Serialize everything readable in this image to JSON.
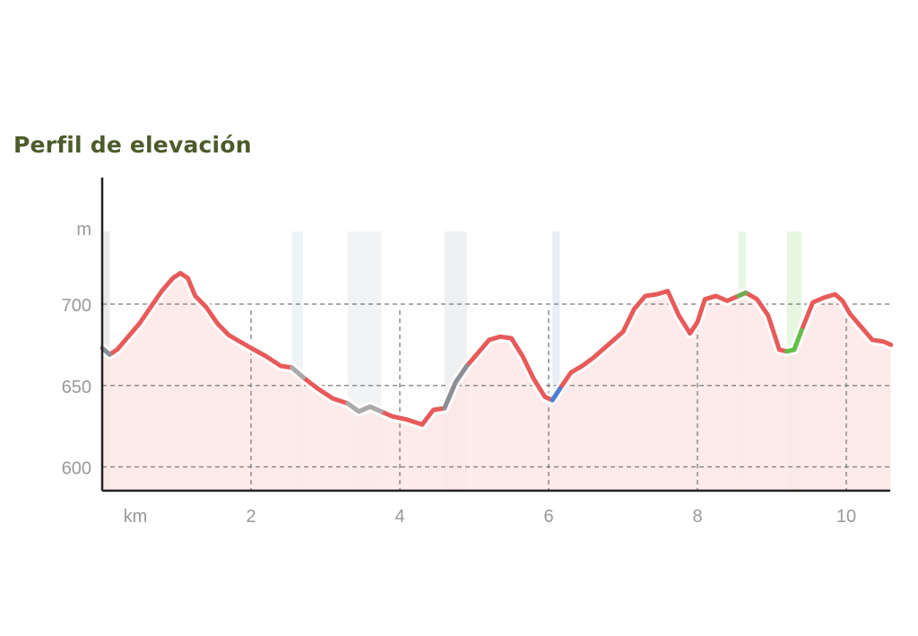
{
  "title": "Perfil de elevación",
  "chart_data": {
    "type": "area",
    "title": "Perfil de elevación",
    "xlabel": "km",
    "ylabel": "m",
    "x_ticks": [
      2,
      4,
      6,
      8,
      10
    ],
    "y_ticks": [
      600,
      650,
      700
    ],
    "xlim": [
      0,
      10.6
    ],
    "ylim": [
      586,
      782
    ],
    "grid": true,
    "line_color": "#e85a5a",
    "fill_color": "#fde8e8",
    "series": [
      {
        "x": [
          0.0,
          0.1,
          0.2,
          0.35,
          0.5,
          0.65,
          0.8,
          0.95,
          1.05,
          1.15,
          1.25,
          1.4,
          1.55,
          1.7,
          1.85,
          2.0,
          2.2,
          2.4,
          2.55,
          2.7,
          2.9,
          3.1,
          3.3,
          3.45,
          3.6,
          3.75,
          3.9,
          4.1,
          4.3,
          4.45,
          4.6,
          4.75,
          4.9,
          5.05,
          5.2,
          5.35,
          5.5,
          5.65,
          5.8,
          5.95,
          6.05,
          6.15,
          6.3,
          6.45,
          6.6,
          6.8,
          7.0,
          7.15,
          7.3,
          7.45,
          7.6,
          7.75,
          7.9,
          8.0,
          8.1,
          8.25,
          8.4,
          8.55,
          8.65,
          8.8,
          8.95,
          9.1,
          9.2,
          9.3,
          9.4,
          9.55,
          9.7,
          9.85,
          9.95,
          10.05,
          10.2,
          10.35,
          10.5,
          10.6
        ],
        "y": [
          673,
          669,
          672,
          680,
          688,
          698,
          708,
          716,
          719,
          716,
          705,
          698,
          688,
          681,
          677,
          673,
          668,
          662,
          661,
          655,
          648,
          642,
          639,
          634,
          637,
          634,
          631,
          629,
          626,
          635,
          636,
          652,
          662,
          670,
          678,
          680,
          679,
          668,
          654,
          643,
          641,
          648,
          658,
          662,
          667,
          675,
          683,
          697,
          705,
          706,
          708,
          693,
          682,
          689,
          703,
          705,
          702,
          705,
          707,
          703,
          693,
          672,
          671,
          672,
          684,
          701,
          704,
          706,
          702,
          694,
          686,
          678,
          677,
          675
        ]
      }
    ],
    "segments": [
      {
        "from": 0.0,
        "to": 0.1,
        "color": "#8a8f96",
        "band": "#eaeaea"
      },
      {
        "from": 2.55,
        "to": 2.7,
        "color": "#aaaaaa",
        "band": "#eef3f6"
      },
      {
        "from": 3.3,
        "to": 3.75,
        "color": "#aaaaaa",
        "band": "#f2f3f5"
      },
      {
        "from": 4.6,
        "to": 4.9,
        "color": "#8a8f96",
        "band": "#eef0f2"
      },
      {
        "from": 6.05,
        "to": 6.15,
        "color": "#4a7fd4",
        "band": "#e8eef8"
      },
      {
        "from": 8.55,
        "to": 8.65,
        "color": "#6aae4f",
        "band": "#eaf4e6"
      },
      {
        "from": 9.2,
        "to": 9.4,
        "color": "#5ec24a",
        "band": "#e6f6e0"
      }
    ]
  }
}
